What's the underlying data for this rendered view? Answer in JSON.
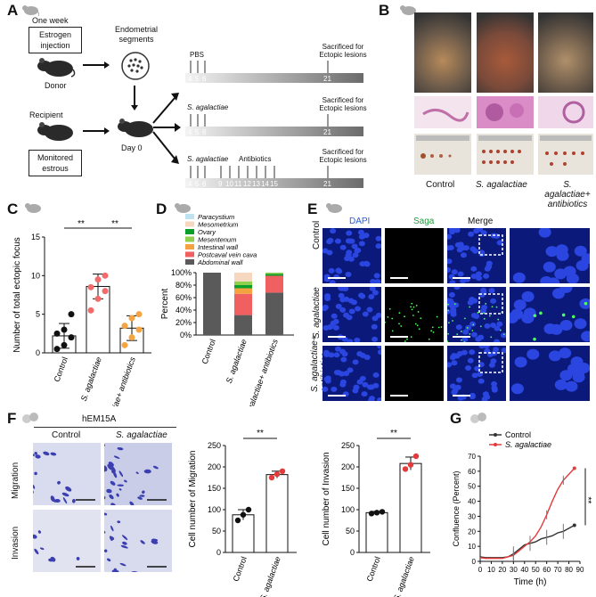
{
  "panels": {
    "A": "A",
    "B": "B",
    "C": "C",
    "D": "D",
    "E": "E",
    "F": "F",
    "G": "G"
  },
  "A": {
    "one_week": "One week",
    "estrogen_box": "Estrogen injection",
    "donor": "Donor",
    "endometrial": "Endometrial segments",
    "recipient": "Recipient",
    "monitored_box": "Monitored estrous",
    "day0": "Day 0",
    "rows": [
      {
        "label": "PBS",
        "label_italic": false,
        "sacrificed": "Sacrificed for Ectopic lesions",
        "ticks": [
          "4",
          "5",
          "6"
        ],
        "end": "21"
      },
      {
        "label": "S. agalactiae",
        "label_italic": true,
        "sacrificed": "Sacrificed for Ectopic lesions",
        "ticks": [
          "4",
          "5",
          "6"
        ],
        "end": "21"
      },
      {
        "label": "S. agalactiae",
        "label_italic": true,
        "extra": "Antibiotics",
        "sacrificed": "Sacrificed for Ectopic lesions",
        "ticks": [
          "4",
          "5",
          "6",
          "9",
          "10",
          "11",
          "12",
          "13",
          "14",
          "15"
        ],
        "end": "21"
      }
    ]
  },
  "B": {
    "groups": [
      "Control",
      "S. agalactiae",
      "S. agalactiae+\nantibiotics"
    ]
  },
  "C": {
    "sig1": "**",
    "sig2": "**"
  },
  "D": {
    "legend": [
      "Paracystium",
      "Mesometrium",
      "Ovary",
      "Mesentenum",
      "Intestinal wall",
      "Postcaval vein cava",
      "Abdominal wall"
    ],
    "legend_colors": [
      "#bfe3f0",
      "#f6d7c0",
      "#0a9e2a",
      "#8fd14f",
      "#f4a340",
      "#f06060",
      "#5a5a5a"
    ]
  },
  "E": {
    "cols": [
      "DAPI",
      "Saga",
      "Merge"
    ],
    "col_colors": [
      "#2a5bd7",
      "#1f9e3a",
      "#111111"
    ],
    "rows": [
      "Control",
      "S. agalactiae",
      "S. agalactiae+\nantibiotics"
    ]
  },
  "F": {
    "cell_line": "hEM15A",
    "cols": [
      "Control",
      "S. agalactiae"
    ],
    "rows": [
      "Migration",
      "Invasion"
    ],
    "sig_mig": "**",
    "sig_inv": "**"
  },
  "G": {
    "sig": "**"
  },
  "chart_data": [
    {
      "panel": "C",
      "type": "bar",
      "categories": [
        "Control",
        "S. agalactiae",
        "S. agalactiae+ antibiotics"
      ],
      "values": [
        2.2,
        8.6,
        3.2
      ],
      "errors": [
        1.6,
        1.6,
        1.6
      ],
      "points": [
        [
          0.5,
          1,
          2,
          2.5,
          3,
          5
        ],
        [
          5.5,
          7,
          8,
          8.5,
          9.5,
          10
        ],
        [
          1,
          2,
          3,
          3.5,
          4.5,
          5
        ]
      ],
      "bar_colors": [
        "#ffffff",
        "#ffffff",
        "#ffffff"
      ],
      "point_colors": [
        "#111111",
        "#f26a6a",
        "#f5a442"
      ],
      "ylabel": "Number of total ectopic focus",
      "ylim": [
        0,
        15
      ],
      "yticks": [
        "0",
        "5",
        "10",
        "15"
      ]
    },
    {
      "panel": "D",
      "type": "bar",
      "stacked": true,
      "categories": [
        "Control",
        "S. agalactiae",
        "S. agalactiae+ antibiotics"
      ],
      "ylabel": "Percent",
      "yticks": [
        "0%",
        "20%",
        "40%",
        "60%",
        "80%",
        "100%"
      ],
      "series": [
        {
          "name": "Abdominal wall",
          "color": "#5a5a5a",
          "values": [
            100,
            32,
            68
          ]
        },
        {
          "name": "Postcaval vein cava",
          "color": "#f06060",
          "values": [
            0,
            34,
            27
          ]
        },
        {
          "name": "Intestinal wall",
          "color": "#f9c9c9",
          "values": [
            0,
            0,
            0
          ]
        },
        {
          "name": "Mesentenum",
          "color": "#f4a340",
          "values": [
            0,
            9,
            0
          ]
        },
        {
          "name": "Ovary",
          "color": "#0a9e2a",
          "values": [
            0,
            5,
            3
          ]
        },
        {
          "name": "Mesometrium",
          "color": "#8fd14f",
          "values": [
            0,
            6,
            2
          ]
        },
        {
          "name": "Paracystium",
          "color": "#f6d7c0",
          "values": [
            0,
            14,
            0
          ]
        }
      ]
    },
    {
      "panel": "F-migration",
      "type": "bar",
      "categories": [
        "Control",
        "S. agalactiae"
      ],
      "values": [
        88,
        182
      ],
      "errors": [
        12,
        8
      ],
      "points": [
        [
          75,
          88,
          100
        ],
        [
          175,
          183,
          190
        ]
      ],
      "point_colors": [
        "#111111",
        "#e23b3b"
      ],
      "ylabel": "Cell number of Migration",
      "ylim": [
        0,
        250
      ],
      "yticks": [
        "0",
        "50",
        "100",
        "150",
        "200",
        "250"
      ]
    },
    {
      "panel": "F-invasion",
      "type": "bar",
      "categories": [
        "Control",
        "S. agalactiae"
      ],
      "values": [
        93,
        208
      ],
      "errors": [
        3,
        15
      ],
      "points": [
        [
          91,
          93,
          95
        ],
        [
          195,
          205,
          225
        ]
      ],
      "point_colors": [
        "#111111",
        "#e23b3b"
      ],
      "ylabel": "Cell number of Invasion",
      "ylim": [
        0,
        250
      ],
      "yticks": [
        "0",
        "50",
        "100",
        "150",
        "200",
        "250"
      ]
    },
    {
      "panel": "G",
      "type": "line",
      "xlabel": "Time (h)",
      "ylabel": "Confluence (Percent)",
      "xlim": [
        0,
        90
      ],
      "ylim": [
        0,
        70
      ],
      "xticks": [
        "0",
        "10",
        "20",
        "30",
        "40",
        "50",
        "60",
        "70",
        "80",
        "90"
      ],
      "yticks": [
        "0",
        "10",
        "20",
        "30",
        "40",
        "50",
        "60",
        "70"
      ],
      "series": [
        {
          "name": "Control",
          "color": "#333333",
          "x": [
            0,
            5,
            10,
            15,
            20,
            25,
            30,
            35,
            40,
            45,
            50,
            55,
            60,
            65,
            70,
            75,
            80,
            85
          ],
          "y": [
            3,
            2.5,
            2.5,
            2.5,
            2.5,
            3,
            5,
            8,
            11,
            12,
            13,
            15,
            16,
            17,
            19,
            20,
            22,
            24
          ]
        },
        {
          "name": "S. agalactiae",
          "color": "#e23b3b",
          "x": [
            0,
            5,
            10,
            15,
            20,
            25,
            30,
            35,
            40,
            45,
            50,
            55,
            60,
            65,
            70,
            75,
            80,
            85
          ],
          "y": [
            2.5,
            2,
            2,
            2,
            2,
            3,
            4,
            7,
            10,
            13,
            17,
            23,
            31,
            40,
            48,
            54,
            58,
            62
          ]
        }
      ]
    }
  ]
}
